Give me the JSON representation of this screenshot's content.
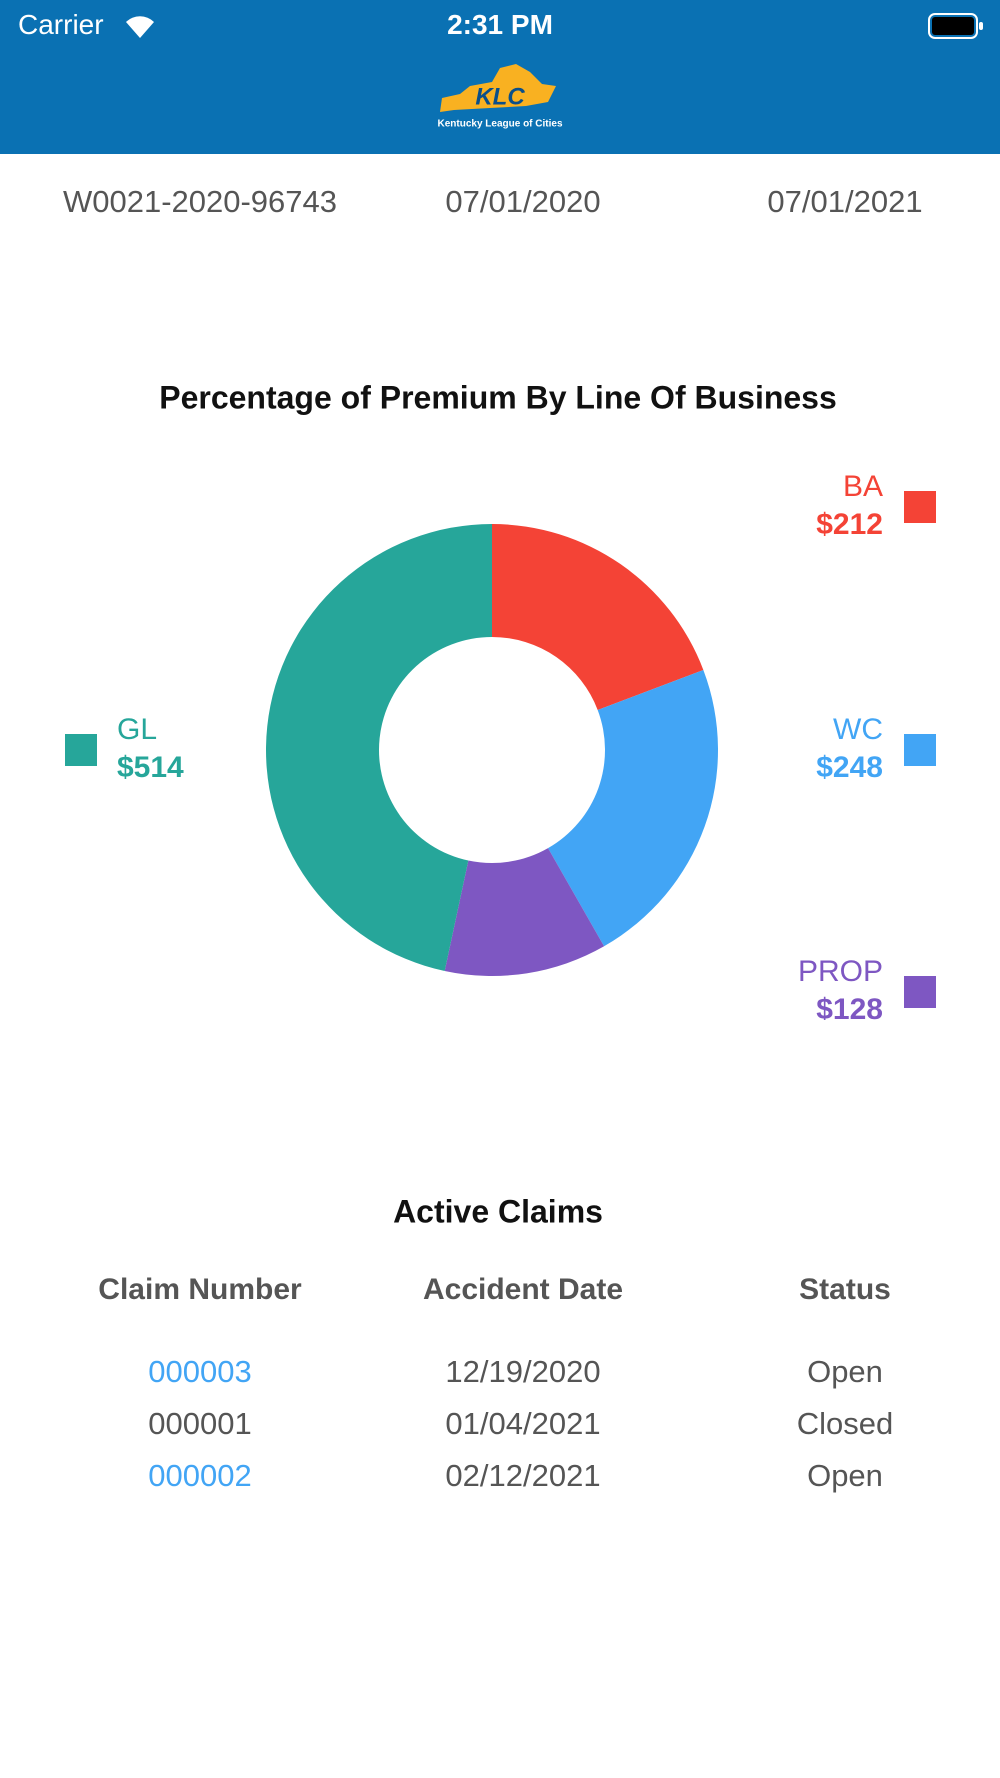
{
  "status_bar": {
    "carrier": "Carrier",
    "time": "2:31 PM"
  },
  "header": {
    "logo_text": "KLC",
    "logo_subtitle": "Kentucky League of Cities"
  },
  "policies": {
    "rows": [
      [
        "W0021-2020-96743",
        "07/01/2020",
        "07/01/2021"
      ]
    ]
  },
  "chart_data": {
    "type": "pie",
    "donut": true,
    "title": "Percentage of Premium By Line Of Business",
    "categories": [
      "BA",
      "WC",
      "PROP",
      "GL"
    ],
    "values": [
      212,
      248,
      128,
      514
    ],
    "value_labels": [
      "$212",
      "$248",
      "$128",
      "$514"
    ],
    "colors": [
      "#f44336",
      "#42a5f5",
      "#7e57c2",
      "#26a69a"
    ]
  },
  "claims": {
    "title": "Active Claims",
    "headers": [
      "Claim Number",
      "Accident Date",
      "Status"
    ],
    "rows": [
      [
        "000003",
        "12/19/2020",
        "Open"
      ],
      [
        "000001",
        "01/04/2021",
        "Closed"
      ],
      [
        "000002",
        "02/12/2021",
        "Open"
      ]
    ]
  }
}
